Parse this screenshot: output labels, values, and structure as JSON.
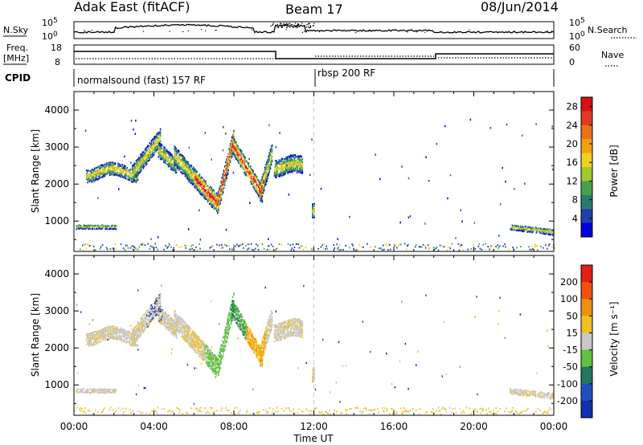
{
  "header": {
    "title": "Adak East (fitACF)",
    "beam": "Beam 17",
    "date": "08/Jun/2014"
  },
  "top_panels": {
    "nsky_label": "N.Sky",
    "nsky_tick_hi": "10^5",
    "nsky_tick_lo": "10^0",
    "nsearch_label": "N.Search",
    "nsearch_tick_hi": "10^5",
    "nsearch_tick_lo": "10^0",
    "freq_label": "Freq.",
    "freq_unit": "[MHz]",
    "freq_tick_hi": "18",
    "freq_tick_lo": "8",
    "nave_label": "Nave",
    "nave_tick_hi": "60",
    "nave_tick_lo": "0",
    "cpid_label": "CPID",
    "cpid_segments": [
      "normalsound (fast) 157 RF",
      "rbsp 200 RF"
    ]
  },
  "chart_data": [
    {
      "type": "heatmap",
      "title": "",
      "ylabel": "Slant Range [km]",
      "xlabel": "Time UT",
      "x_ticks": [
        "00:00",
        "04:00",
        "08:00",
        "12:00",
        "16:00",
        "20:00",
        "00:00"
      ],
      "x_range_hours": [
        0,
        24
      ],
      "y_ticks": [
        1000,
        2000,
        3000,
        4000
      ],
      "y_range_km": [
        180,
        4500
      ],
      "colorbar": {
        "label": "Power [dB]",
        "ticks": [
          4,
          8,
          12,
          16,
          20,
          24,
          28
        ],
        "range": [
          0,
          30
        ],
        "colors": [
          "#0000dd",
          "#2040b0",
          "#287c6e",
          "#4aa04a",
          "#a0c830",
          "#f0d020",
          "#f5a010",
          "#f07018",
          "#e03a20",
          "#d81010"
        ]
      }
    },
    {
      "type": "heatmap",
      "title": "",
      "ylabel": "Slant Range [km]",
      "xlabel": "Time UT",
      "x_ticks": [
        "00:00",
        "04:00",
        "08:00",
        "12:00",
        "16:00",
        "20:00",
        "00:00"
      ],
      "x_range_hours": [
        0,
        24
      ],
      "y_ticks": [
        1000,
        2000,
        3000,
        4000
      ],
      "y_range_km": [
        180,
        4500
      ],
      "colorbar": {
        "label": "Velocity [m s⁻¹]",
        "ticks": [
          200,
          100,
          50,
          15,
          -15,
          -50,
          -100,
          -200
        ],
        "colors": [
          "#1030b0",
          "#2050c0",
          "#207860",
          "#60c040",
          "#c8c8c8",
          "#f0c020",
          "#f09010",
          "#f05010",
          "#e02010"
        ]
      }
    }
  ],
  "x_axis": {
    "label": "Time UT",
    "ticks": [
      "00:00",
      "04:00",
      "08:00",
      "12:00",
      "16:00",
      "20:00",
      "00:00"
    ]
  }
}
